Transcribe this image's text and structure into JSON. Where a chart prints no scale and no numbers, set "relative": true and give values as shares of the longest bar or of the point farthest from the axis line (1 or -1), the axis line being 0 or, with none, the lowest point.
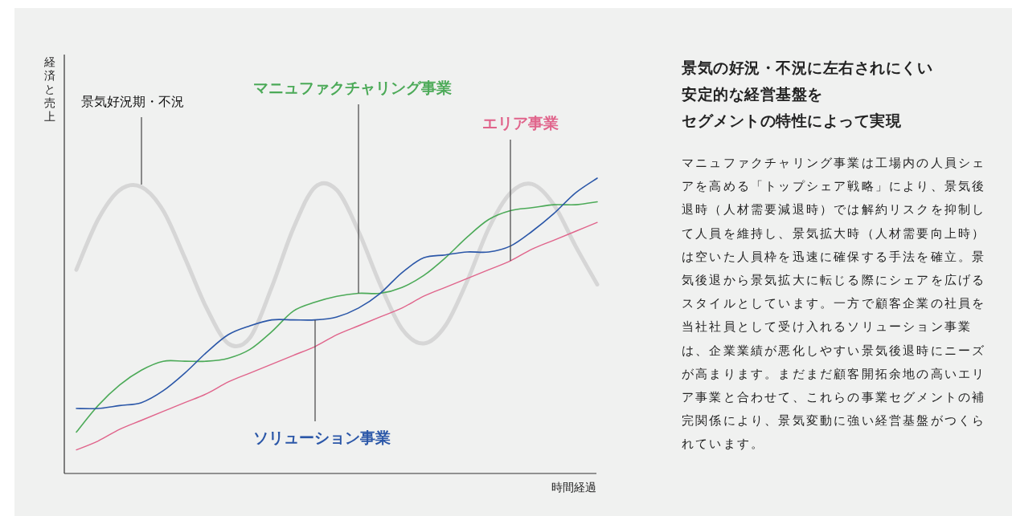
{
  "chart_data": [
    {
      "type": "line",
      "relative": true,
      "ylabel": "経済と売上",
      "xlabel": "時間経過",
      "grid": false,
      "legend": false,
      "categories": [
        null,
        null,
        null,
        null,
        null,
        null,
        null,
        null,
        null,
        null,
        null,
        null,
        null,
        null,
        null,
        null,
        null,
        null,
        null,
        null,
        null,
        null,
        null,
        null,
        null
      ],
      "series": [
        {
          "name": "景気好況期・不況",
          "color": "#d6d6d6",
          "values": [
            0.69,
            0.86,
            0.96,
            0.97,
            0.89,
            0.73,
            0.56,
            0.44,
            0.46,
            0.63,
            0.83,
            0.97,
            0.96,
            0.82,
            0.64,
            0.49,
            0.44,
            0.5,
            0.65,
            0.83,
            0.95,
            0.98,
            0.91,
            0.77,
            0.64
          ]
        },
        {
          "name": "マニュファクチャリング事業",
          "color": "#4caa58",
          "values": [
            0.14,
            0.23,
            0.3,
            0.35,
            0.38,
            0.38,
            0.38,
            0.39,
            0.42,
            0.48,
            0.55,
            0.58,
            0.6,
            0.61,
            0.61,
            0.63,
            0.67,
            0.73,
            0.8,
            0.86,
            0.89,
            0.9,
            0.91,
            0.91,
            0.92
          ]
        },
        {
          "name": "エリア事業",
          "color": "#e0648b",
          "values": [
            0.08,
            0.11,
            0.15,
            0.18,
            0.21,
            0.24,
            0.27,
            0.31,
            0.34,
            0.37,
            0.4,
            0.43,
            0.47,
            0.5,
            0.53,
            0.56,
            0.6,
            0.63,
            0.66,
            0.69,
            0.72,
            0.76,
            0.79,
            0.82,
            0.85
          ]
        },
        {
          "name": "ソリューション事業",
          "color": "#2b57a8",
          "values": [
            0.22,
            0.22,
            0.23,
            0.24,
            0.28,
            0.34,
            0.41,
            0.47,
            0.5,
            0.52,
            0.52,
            0.52,
            0.53,
            0.56,
            0.61,
            0.68,
            0.73,
            0.74,
            0.75,
            0.75,
            0.77,
            0.82,
            0.88,
            0.95,
            1.0
          ]
        }
      ]
    },
    {
      "type": "other",
      "title": "景気の好況・不況に左右されにくい安定的な経営基盤をセグメントの特性によって実現",
      "annotations": [
        "マニュファクチャリング事業は工場内の人員シェアを高める「トップシェア戦略」により、景気後退時（人材需要減退時）では解約リスクを抑制して人員を維持し、景気拡大時（人材需要向上時）は空いた人員枠を迅速に確保する手法を確立。景気後退から景気拡大に転じる際にシェアを広げるスタイルとしています。一方で顧客企業の社員を当社社員として受け入れるソリューション事業は、企業業績が悪化しやすい景気後退時にニーズが高まります。まだまだ顧客開拓余地の高いエリア事業と合わせて、これらの事業セグメントの補完関係により、景気変動に強い経営基盤がつくられています。"
      ]
    }
  ]
}
